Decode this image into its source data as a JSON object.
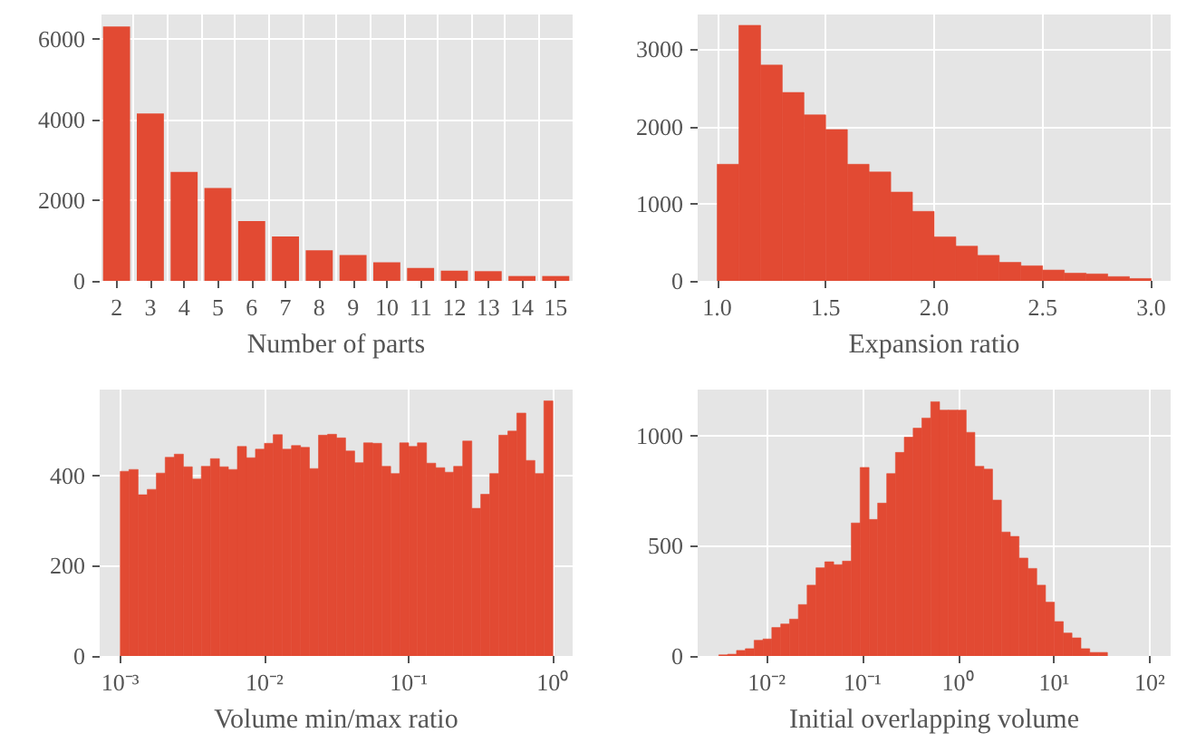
{
  "chart_data": [
    {
      "type": "bar",
      "xlabel": "Number of parts",
      "categories": [
        "2",
        "3",
        "4",
        "5",
        "6",
        "7",
        "8",
        "9",
        "10",
        "11",
        "12",
        "13",
        "14",
        "15"
      ],
      "values": [
        6300,
        4150,
        2700,
        2300,
        1480,
        1100,
        760,
        640,
        460,
        320,
        250,
        240,
        120,
        120
      ],
      "color": "#e24a33",
      "ylim": [
        0,
        6600
      ],
      "yticks": [
        0,
        2000,
        4000,
        6000
      ],
      "grid": true
    },
    {
      "type": "histogram",
      "xlabel": "Expansion ratio",
      "bins": [
        1.0,
        1.1,
        1.2,
        1.3,
        1.4,
        1.5,
        1.6,
        1.7,
        1.8,
        1.9,
        2.0,
        2.1,
        2.2,
        2.3,
        2.4,
        2.5,
        2.6,
        2.7,
        2.8,
        2.9,
        3.0
      ],
      "values": [
        1510,
        3310,
        2795,
        2440,
        2150,
        1960,
        1510,
        1410,
        1150,
        900,
        570,
        450,
        330,
        240,
        195,
        140,
        100,
        90,
        55,
        30
      ],
      "color": "#e24a33",
      "xlim": [
        0.91,
        3.09
      ],
      "xticks": [
        {
          "value": 1.0,
          "label": "1.0"
        },
        {
          "value": 1.5,
          "label": "1.5"
        },
        {
          "value": 2.0,
          "label": "2.0"
        },
        {
          "value": 2.5,
          "label": "2.5"
        },
        {
          "value": 3.0,
          "label": "3.0"
        }
      ],
      "ylim": [
        0,
        3450
      ],
      "yticks": [
        0,
        1000,
        2000,
        3000
      ],
      "grid": true
    },
    {
      "type": "histogram",
      "xlabel": "Volume min/max ratio",
      "log": "x",
      "bins": [
        0.001,
        0.00115,
        0.00133,
        0.00154,
        0.00178,
        0.00205,
        0.00237,
        0.00274,
        0.00316,
        0.00365,
        0.00422,
        0.00487,
        0.00562,
        0.00649,
        0.0075,
        0.00866,
        0.01,
        0.0115,
        0.0133,
        0.0154,
        0.0178,
        0.0205,
        0.0237,
        0.0274,
        0.0316,
        0.0365,
        0.0422,
        0.0487,
        0.0562,
        0.0649,
        0.075,
        0.0866,
        0.1,
        0.115,
        0.133,
        0.154,
        0.178,
        0.205,
        0.237,
        0.274,
        0.316,
        0.365,
        0.422,
        0.487,
        0.562,
        0.649,
        0.75,
        0.866,
        1
      ],
      "values": [
        409,
        413,
        357,
        369,
        405,
        440,
        447,
        419,
        392,
        420,
        437,
        419,
        413,
        464,
        439,
        458,
        471,
        490,
        458,
        466,
        462,
        415,
        489,
        491,
        483,
        454,
        428,
        472,
        471,
        420,
        404,
        472,
        464,
        472,
        427,
        417,
        407,
        420,
        476,
        327,
        358,
        404,
        489,
        498,
        538,
        433,
        404,
        565
      ],
      "color": "#e24a33",
      "xlim": [
        0.00072,
        1.37
      ],
      "xticks": [
        {
          "value": 0.001,
          "label": "10⁻³"
        },
        {
          "value": 0.01,
          "label": "10⁻²"
        },
        {
          "value": 0.1,
          "label": "10⁻¹"
        },
        {
          "value": 1,
          "label": "10⁰"
        }
      ],
      "ylim": [
        0,
        590
      ],
      "yticks": [
        0,
        200,
        400
      ],
      "grid": true
    },
    {
      "type": "histogram",
      "xlabel": "Initial overlapping volume",
      "log": "x",
      "bins": [
        0.00316,
        0.00391,
        0.00484,
        0.00598,
        0.00739,
        0.00914,
        0.0113,
        0.014,
        0.0173,
        0.0214,
        0.0264,
        0.0327,
        0.0404,
        0.05,
        0.0618,
        0.0764,
        0.0945,
        0.117,
        0.144,
        0.179,
        0.221,
        0.273,
        0.338,
        0.417,
        0.516,
        0.638,
        0.789,
        0.976,
        1.21,
        1.49,
        1.85,
        2.28,
        2.82,
        3.49,
        4.31,
        5.33,
        6.6,
        8.15,
        10.1,
        12.5,
        15.4,
        19.1,
        23.6,
        29.2,
        36.1
      ],
      "values": [
        5,
        8,
        25,
        33,
        71,
        77,
        129,
        145,
        167,
        233,
        321,
        400,
        427,
        414,
        430,
        603,
        855,
        619,
        693,
        827,
        923,
        992,
        1033,
        1079,
        1153,
        1115,
        1115,
        1115,
        1014,
        860,
        847,
        707,
        562,
        542,
        444,
        397,
        321,
        244,
        156,
        104,
        82,
        33,
        16,
        16
      ],
      "color": "#e24a33",
      "xlim": [
        0.0019,
        165
      ],
      "xticks": [
        {
          "value": 0.01,
          "label": "10⁻²"
        },
        {
          "value": 0.1,
          "label": "10⁻¹"
        },
        {
          "value": 1,
          "label": "10⁰"
        },
        {
          "value": 10,
          "label": "10¹"
        },
        {
          "value": 100,
          "label": "10²"
        }
      ],
      "ylim": [
        0,
        1208
      ],
      "yticks": [
        0,
        500,
        1000
      ],
      "grid": true
    }
  ]
}
